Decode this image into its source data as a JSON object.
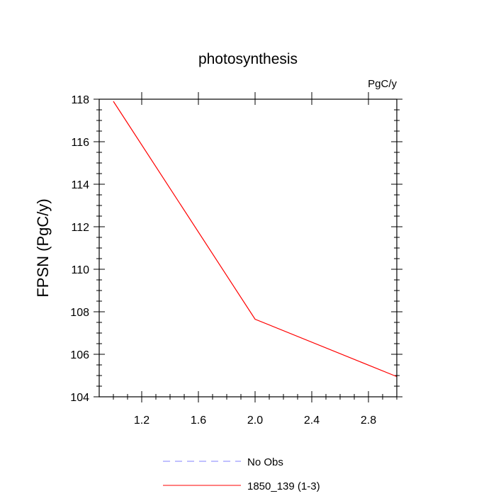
{
  "chart_data": {
    "type": "line",
    "title": "photosynthesis",
    "units_label": "PgC/y",
    "xlabel": "",
    "ylabel": "FPSN  (PgC/y)",
    "xlim": [
      0.9,
      3.0
    ],
    "ylim": [
      104,
      118
    ],
    "x_ticks": [
      1.2,
      1.6,
      2.0,
      2.4,
      2.8
    ],
    "y_ticks": [
      104,
      106,
      108,
      110,
      112,
      114,
      116,
      118
    ],
    "series": [
      {
        "name": "1850_139 (1-3)",
        "color": "#ff0000",
        "style": "solid",
        "x": [
          1.0,
          2.0,
          3.0
        ],
        "y": [
          117.9,
          107.65,
          104.95
        ]
      }
    ],
    "legend": [
      {
        "label": "No Obs",
        "color": "#8080ff",
        "style": "dashed"
      },
      {
        "label": "1850_139 (1-3)",
        "color": "#ff0000",
        "style": "solid"
      }
    ],
    "legend_position": "bottom-center"
  }
}
